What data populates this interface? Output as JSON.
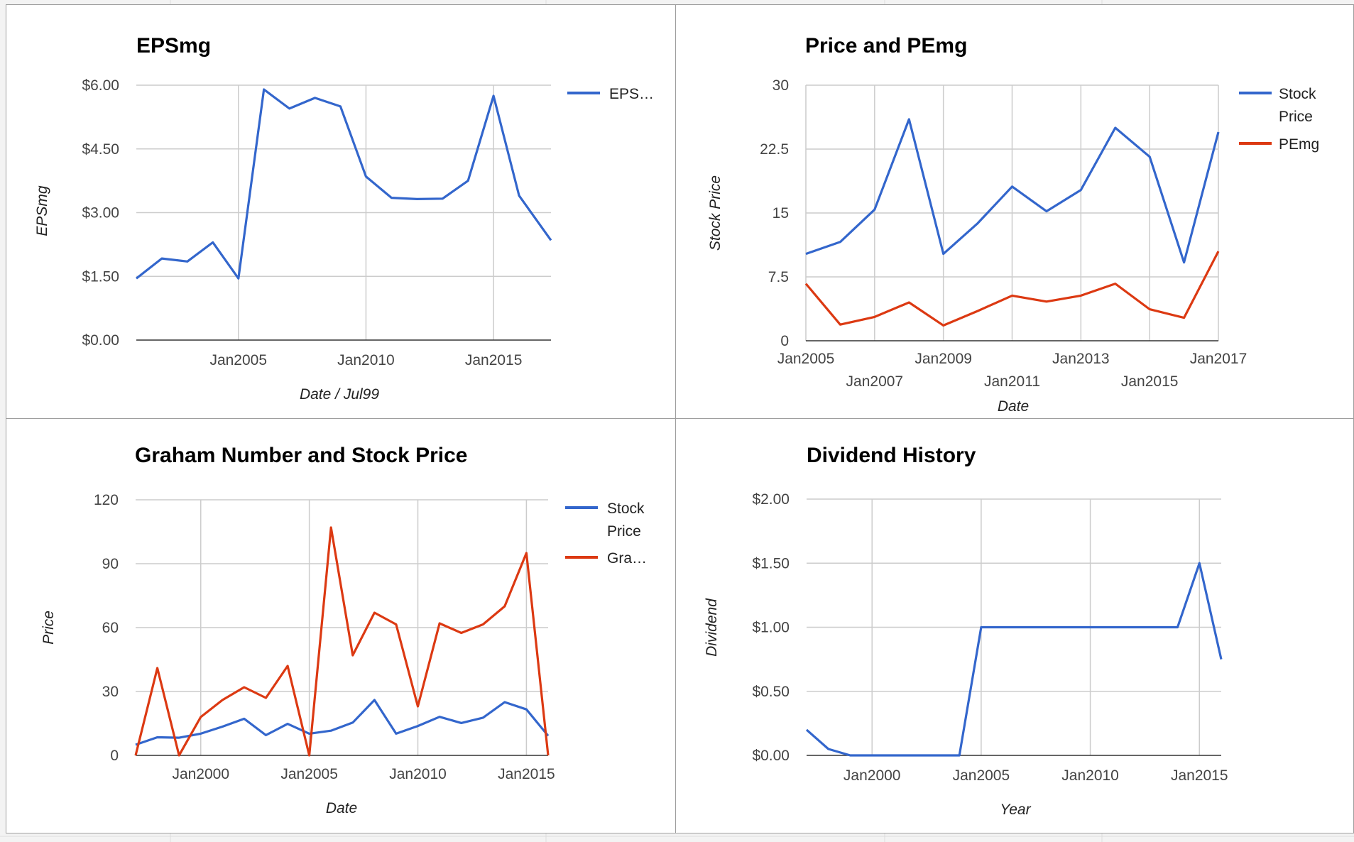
{
  "colors": {
    "blue": "#3366cc",
    "red": "#dc3912"
  },
  "chart_data": [
    {
      "id": "eps",
      "type": "line",
      "title": "EPSmg",
      "xlabel": "Date / Jul99",
      "ylabel": "EPSmg",
      "xlim": [
        2001,
        2017.25
      ],
      "ylim": [
        0,
        6
      ],
      "yticks": [
        {
          "v": 0,
          "label": "$0.00"
        },
        {
          "v": 1.5,
          "label": "$1.50"
        },
        {
          "v": 3,
          "label": "$3.00"
        },
        {
          "v": 4.5,
          "label": "$4.50"
        },
        {
          "v": 6,
          "label": "$6.00"
        }
      ],
      "xticks": [
        {
          "v": 2005,
          "label": "Jan2005",
          "row": 0
        },
        {
          "v": 2010,
          "label": "Jan2010",
          "row": 0
        },
        {
          "v": 2015,
          "label": "Jan2015",
          "row": 0
        }
      ],
      "xgrid": [
        2005,
        2010,
        2015
      ],
      "series": [
        {
          "name": "EPSmg",
          "legend": "EPS…",
          "color": "#3366cc",
          "x": [
            2001,
            2002,
            2003,
            2004,
            2005,
            2006,
            2007,
            2008,
            2009,
            2010,
            2011,
            2012,
            2013,
            2014,
            2015,
            2016,
            2017.25
          ],
          "y": [
            1.45,
            1.92,
            1.85,
            2.3,
            1.45,
            5.9,
            5.45,
            5.7,
            5.5,
            3.85,
            3.35,
            3.32,
            3.33,
            3.75,
            5.75,
            3.4,
            2.35
          ]
        }
      ]
    },
    {
      "id": "price",
      "type": "line",
      "title": "Price and PEmg",
      "xlabel": "Date",
      "ylabel": "Stock Price",
      "xlim": [
        2005,
        2017
      ],
      "ylim": [
        0,
        30
      ],
      "yticks": [
        {
          "v": 0,
          "label": "0"
        },
        {
          "v": 7.5,
          "label": "7.5"
        },
        {
          "v": 15,
          "label": "15"
        },
        {
          "v": 22.5,
          "label": "22.5"
        },
        {
          "v": 30,
          "label": "30"
        }
      ],
      "xticks": [
        {
          "v": 2005,
          "label": "Jan2005",
          "row": 0
        },
        {
          "v": 2007,
          "label": "Jan2007",
          "row": 1
        },
        {
          "v": 2009,
          "label": "Jan2009",
          "row": 0
        },
        {
          "v": 2011,
          "label": "Jan2011",
          "row": 1
        },
        {
          "v": 2013,
          "label": "Jan2013",
          "row": 0
        },
        {
          "v": 2015,
          "label": "Jan2015",
          "row": 1
        },
        {
          "v": 2017,
          "label": "Jan2017",
          "row": 0
        }
      ],
      "xgrid": [
        2005,
        2007,
        2009,
        2011,
        2013,
        2015,
        2017
      ],
      "series": [
        {
          "name": "Stock Price",
          "legend": "Stock Price",
          "color": "#3366cc",
          "x": [
            2005,
            2006,
            2007,
            2008,
            2009,
            2010,
            2011,
            2012,
            2013,
            2014,
            2015,
            2016,
            2017
          ],
          "y": [
            10.2,
            11.6,
            15.4,
            26,
            10.2,
            13.8,
            18.1,
            15.2,
            17.7,
            25,
            21.6,
            9.2,
            24.5
          ]
        },
        {
          "name": "PEmg",
          "legend": "PEmg",
          "color": "#dc3912",
          "x": [
            2005,
            2006,
            2007,
            2008,
            2009,
            2010,
            2011,
            2012,
            2013,
            2014,
            2015,
            2016,
            2017
          ],
          "y": [
            6.7,
            1.9,
            2.8,
            4.5,
            1.8,
            3.5,
            5.3,
            4.6,
            5.3,
            6.7,
            3.7,
            2.7,
            10.5
          ]
        }
      ]
    },
    {
      "id": "graham",
      "type": "line",
      "title": "Graham Number and Stock Price",
      "xlabel": "Date",
      "ylabel": "Price",
      "xlim": [
        1997,
        2016
      ],
      "ylim": [
        0,
        120
      ],
      "yticks": [
        {
          "v": 0,
          "label": "0"
        },
        {
          "v": 30,
          "label": "30"
        },
        {
          "v": 60,
          "label": "60"
        },
        {
          "v": 90,
          "label": "90"
        },
        {
          "v": 120,
          "label": "120"
        }
      ],
      "xticks": [
        {
          "v": 2000,
          "label": "Jan2000",
          "row": 0
        },
        {
          "v": 2005,
          "label": "Jan2005",
          "row": 0
        },
        {
          "v": 2010,
          "label": "Jan2010",
          "row": 0
        },
        {
          "v": 2015,
          "label": "Jan2015",
          "row": 0
        }
      ],
      "xgrid": [
        2000,
        2005,
        2010,
        2015
      ],
      "series": [
        {
          "name": "Stock Price",
          "legend": "Stock Price",
          "color": "#3366cc",
          "x": [
            1997,
            1998,
            1999,
            2000,
            2001,
            2002,
            2003,
            2004,
            2005,
            2006,
            2007,
            2008,
            2009,
            2010,
            2011,
            2012,
            2013,
            2014,
            2015,
            2016
          ],
          "y": [
            5,
            8.5,
            8.3,
            10.2,
            13.5,
            17.2,
            9.5,
            14.8,
            10.2,
            11.6,
            15.4,
            26,
            10.2,
            13.8,
            18.1,
            15.2,
            17.7,
            25,
            21.6,
            9.2
          ]
        },
        {
          "name": "Graham Number",
          "legend": "Gra…",
          "color": "#dc3912",
          "x": [
            1997,
            1998,
            1999,
            2000,
            2001,
            2002,
            2003,
            2004,
            2005,
            2006,
            2007,
            2008,
            2009,
            2010,
            2011,
            2012,
            2013,
            2014,
            2015,
            2016
          ],
          "y": [
            0,
            41,
            0,
            18,
            26,
            32,
            27,
            42,
            0,
            107,
            47,
            67,
            61.5,
            23,
            62,
            57.5,
            61.5,
            70,
            95,
            0
          ]
        }
      ]
    },
    {
      "id": "dividend",
      "type": "line",
      "title": "Dividend History",
      "xlabel": "Year",
      "ylabel": "Dividend",
      "xlim": [
        1997,
        2016
      ],
      "ylim": [
        0,
        2
      ],
      "yticks": [
        {
          "v": 0,
          "label": "$0.00"
        },
        {
          "v": 0.5,
          "label": "$0.50"
        },
        {
          "v": 1,
          "label": "$1.00"
        },
        {
          "v": 1.5,
          "label": "$1.50"
        },
        {
          "v": 2,
          "label": "$2.00"
        }
      ],
      "xticks": [
        {
          "v": 2000,
          "label": "Jan2000",
          "row": 0
        },
        {
          "v": 2005,
          "label": "Jan2005",
          "row": 0
        },
        {
          "v": 2010,
          "label": "Jan2010",
          "row": 0
        },
        {
          "v": 2015,
          "label": "Jan2015",
          "row": 0
        }
      ],
      "xgrid": [
        2000,
        2005,
        2010,
        2015
      ],
      "series": [
        {
          "name": "Dividend",
          "legend": "",
          "color": "#3366cc",
          "x": [
            1997,
            1998,
            1999,
            2000,
            2001,
            2002,
            2003,
            2004,
            2005,
            2006,
            2007,
            2008,
            2009,
            2010,
            2011,
            2012,
            2013,
            2014,
            2015,
            2016
          ],
          "y": [
            0.2,
            0.05,
            0,
            0,
            0,
            0,
            0,
            0,
            1,
            1,
            1,
            1,
            1,
            1,
            1,
            1,
            1,
            1,
            1.5,
            0.75
          ]
        }
      ]
    }
  ]
}
